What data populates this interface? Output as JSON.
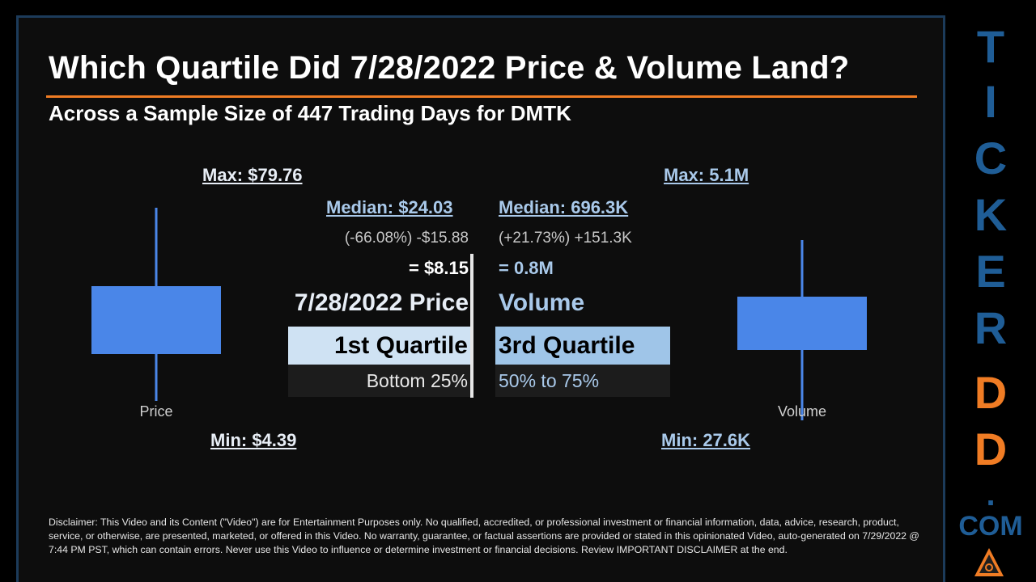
{
  "header": {
    "title": "Which Quartile Did 7/28/2022 Price & Volume Land?",
    "subtitle": "Across a Sample Size of 447 Trading Days for DMTK"
  },
  "price": {
    "max_label": "Max: $79.76",
    "min_label": "Min: $4.39",
    "median_label": "Median: $24.03",
    "change_label": "(-66.08%) -$15.88",
    "value_label": "= $8.15",
    "heading": "7/28/2022 Price",
    "quartile": "1st Quartile",
    "range": "Bottom 25%"
  },
  "volume": {
    "max_label": "Max: 5.1M",
    "min_label": "Min: 27.6K",
    "median_label": "Median: 696.3K",
    "change_label": "(+21.73%) +151.3K",
    "value_label": "= 0.8M",
    "heading": "Volume",
    "quartile": "3rd Quartile",
    "range": "50% to 75%"
  },
  "chart_data": [
    {
      "type": "box",
      "series": [
        {
          "name": "Price",
          "min": 4.39,
          "median": 24.03,
          "max": 79.76,
          "current": 8.15,
          "quartile": 1
        }
      ],
      "color": "#4a86e8"
    },
    {
      "type": "box",
      "series": [
        {
          "name": "Volume",
          "min": 27600,
          "median": 696300,
          "max": 5100000,
          "current": 800000,
          "quartile": 3
        }
      ],
      "color": "#4a86e8"
    }
  ],
  "sidebar": {
    "letters": [
      "T",
      "I",
      "C",
      "K",
      "E",
      "R",
      "D",
      "D",
      "."
    ],
    "letter_colors": [
      "#1f5d96",
      "#1f5d96",
      "#1f5d96",
      "#1f5d96",
      "#1f5d96",
      "#1f5d96",
      "#f07c24",
      "#f07c24",
      "#1f5d96"
    ],
    "com": "COM"
  },
  "disclaimer": "Disclaimer: This Video and its Content (\"Video\") are for Entertainment Purposes only. No qualified, accredited, or professional investment or financial information, data, advice, research, product, service, or otherwise, are presented, marketed, or offered in this Video. No warranty, guarantee, or factual assertions are provided or stated in this opinionated Video, auto-generated on 7/29/2022 @ 7:44 PM PST, which can contain errors. Never use this Video to influence or determine investment or financial decisions. Review IMPORTANT DISCLAIMER at the end.",
  "colors": {
    "accent": "#f07c24",
    "brand_blue": "#1f5d96",
    "box_fill": "#4a86e8",
    "label_blue": "#a9c9ea",
    "price_quartile_bg": "#cfe2f3",
    "volume_quartile_bg": "#9fc5e8"
  }
}
